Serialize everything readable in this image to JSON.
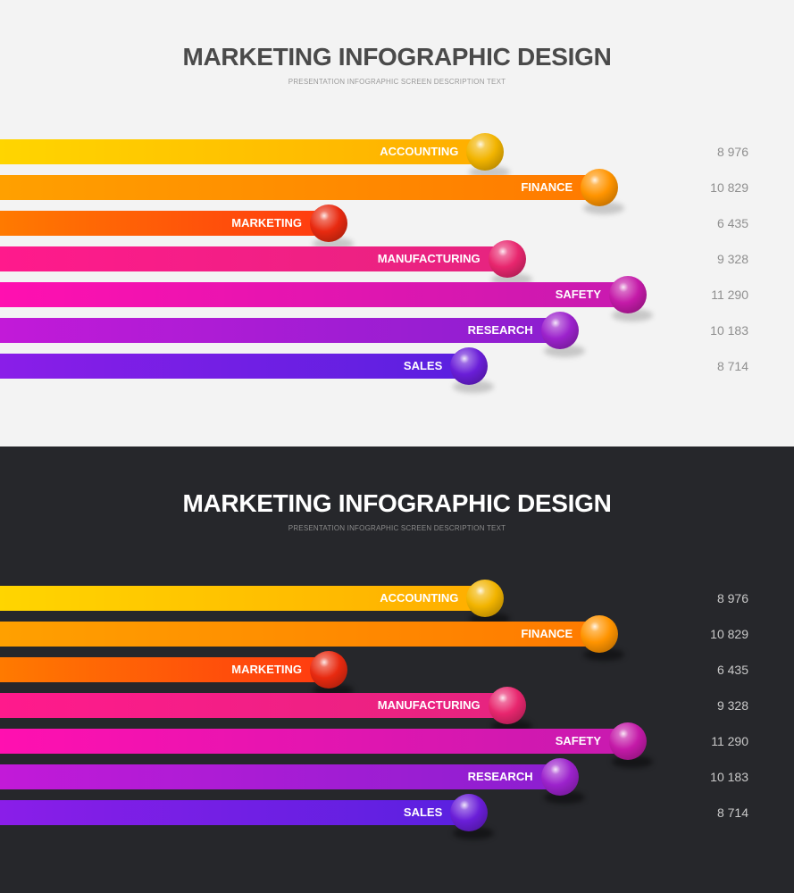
{
  "panels": [
    {
      "theme": "light",
      "background": "#f3f3f3",
      "title": "MARKETING INFOGRAPHIC DESIGN",
      "subtitle": "PRESENTATION INFOGRAPHIC SCREEN DESCRIPTION TEXT"
    },
    {
      "theme": "dark",
      "background": "#26272b",
      "title": "MARKETING INFOGRAPHIC DESIGN",
      "subtitle": "PRESENTATION INFOGRAPHIC SCREEN DESCRIPTION TEXT"
    }
  ],
  "chart_data": [
    {
      "type": "bar",
      "orientation": "horizontal",
      "title": "MARKETING INFOGRAPHIC DESIGN",
      "subtitle": "PRESENTATION INFOGRAPHIC SCREEN DESCRIPTION TEXT",
      "categories": [
        "ACCOUNTING",
        "FINANCE",
        "MARKETING",
        "MANUFACTURING",
        "SAFETY",
        "RESEARCH",
        "SALES"
      ],
      "values": [
        8976,
        10829,
        6435,
        9328,
        11290,
        10183,
        8714
      ],
      "value_labels": [
        "8 976",
        "10 829",
        "6 435",
        "9 328",
        "11 290",
        "10 183",
        "8 714"
      ],
      "colors": [
        "#ffc400",
        "#ff8c00",
        "#ff5a00",
        "#e8258a",
        "#d41cb0",
        "#a21fd0",
        "#7a1fe0"
      ],
      "xlim": [
        0,
        11290
      ],
      "grid": false,
      "legend": "none"
    },
    {
      "type": "bar",
      "orientation": "horizontal",
      "title": "MARKETING INFOGRAPHIC DESIGN",
      "subtitle": "PRESENTATION INFOGRAPHIC SCREEN DESCRIPTION TEXT",
      "categories": [
        "ACCOUNTING",
        "FINANCE",
        "MARKETING",
        "MANUFACTURING",
        "SAFETY",
        "RESEARCH",
        "SALES"
      ],
      "values": [
        8976,
        10829,
        6435,
        9328,
        11290,
        10183,
        8714
      ],
      "value_labels": [
        "8 976",
        "10 829",
        "6 435",
        "9 328",
        "11 290",
        "10 183",
        "8 714"
      ],
      "colors": [
        "#ffc400",
        "#ff8c00",
        "#ff5a00",
        "#e8258a",
        "#d41cb0",
        "#a21fd0",
        "#7a1fe0"
      ],
      "xlim": [
        0,
        11290
      ],
      "grid": false,
      "legend": "none"
    }
  ],
  "gradients": [
    {
      "start": "#ffd500",
      "end": "#ffae00",
      "ball": "#f2b400"
    },
    {
      "start": "#ffa000",
      "end": "#ff7a00",
      "ball": "#ff9400"
    },
    {
      "start": "#ff7a00",
      "end": "#ff3a10",
      "ball": "#e82a10"
    },
    {
      "start": "#ff1a8c",
      "end": "#e6247f",
      "ball": "#e8266e"
    },
    {
      "start": "#ff10b0",
      "end": "#c81ab0",
      "ball": "#c41aa8"
    },
    {
      "start": "#c21ad8",
      "end": "#8c1fd0",
      "ball": "#9c22cc"
    },
    {
      "start": "#8a1ee8",
      "end": "#5a20e0",
      "ball": "#6a1ed8"
    }
  ]
}
